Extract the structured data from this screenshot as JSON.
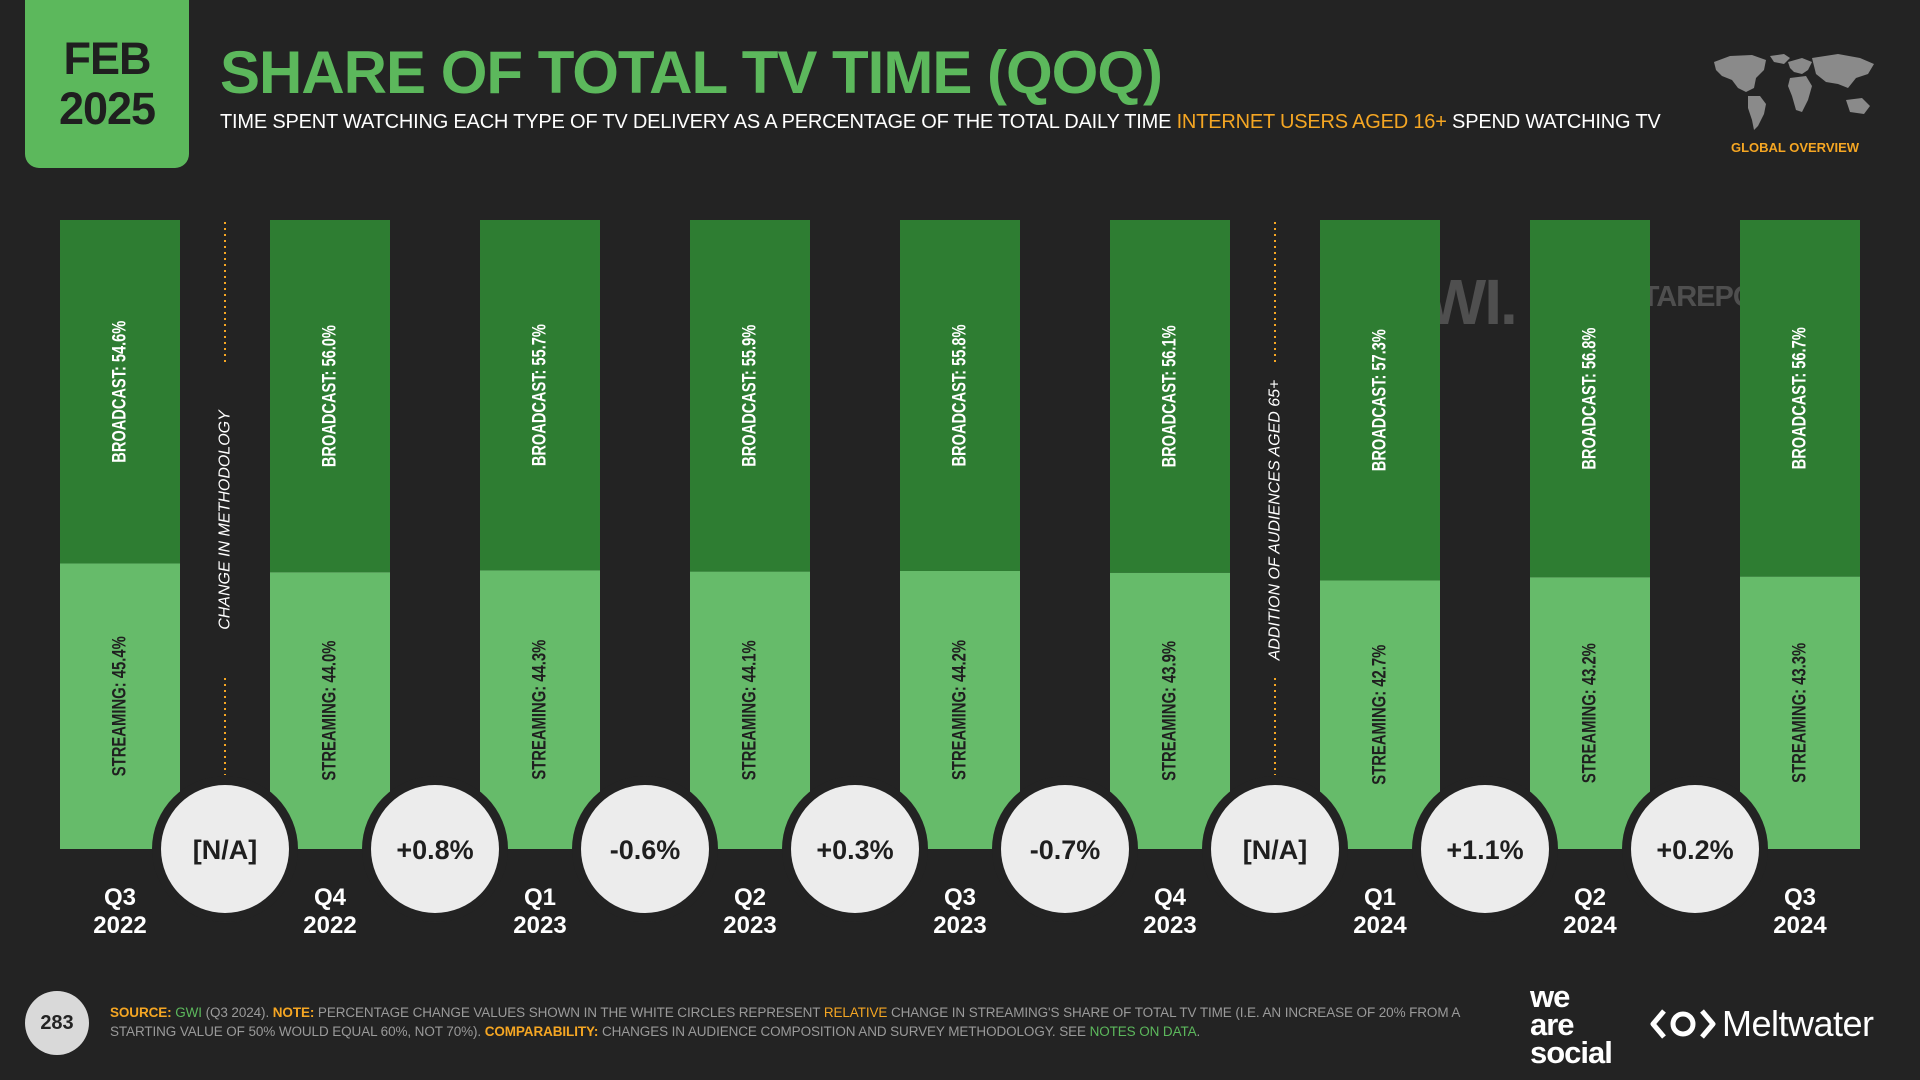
{
  "header": {
    "date_month": "FEB",
    "date_year": "2025",
    "title": "SHARE OF TOTAL TV TIME (QOQ)",
    "subtitle_pre": "TIME SPENT WATCHING EACH TYPE OF TV DELIVERY AS A PERCENTAGE OF THE TOTAL DAILY TIME ",
    "subtitle_highlight": "INTERNET USERS AGED 16+",
    "subtitle_post": " SPEND WATCHING TV",
    "global_label": "GLOBAL OVERVIEW"
  },
  "watermarks": {
    "gwi": "GWI.",
    "datareportal": "DATAREPORTAL"
  },
  "colors": {
    "background": "#232323",
    "broadcast": "#2e7d32",
    "streaming": "#66bb6a",
    "accent_green": "#5cb85c",
    "accent_orange": "#f5a623",
    "circle": "#ececec"
  },
  "chart_data": {
    "type": "bar",
    "stacked": true,
    "orientation": "vertical",
    "ylim": [
      0,
      100
    ],
    "categories": [
      [
        "Q3",
        "2022"
      ],
      [
        "Q4",
        "2022"
      ],
      [
        "Q1",
        "2023"
      ],
      [
        "Q2",
        "2023"
      ],
      [
        "Q3",
        "2023"
      ],
      [
        "Q4",
        "2023"
      ],
      [
        "Q1",
        "2024"
      ],
      [
        "Q2",
        "2024"
      ],
      [
        "Q3",
        "2024"
      ]
    ],
    "series": [
      {
        "name": "STREAMING",
        "values": [
          45.4,
          44.0,
          44.3,
          44.1,
          44.2,
          43.9,
          42.7,
          43.2,
          43.3
        ],
        "labels": [
          "STREAMING: 45.4%",
          "STREAMING: 44.0%",
          "STREAMING: 44.3%",
          "STREAMING: 44.1%",
          "STREAMING: 44.2%",
          "STREAMING: 43.9%",
          "STREAMING: 42.7%",
          "STREAMING: 43.2%",
          "STREAMING: 43.3%"
        ]
      },
      {
        "name": "BROADCAST",
        "values": [
          54.6,
          56.0,
          55.7,
          55.9,
          55.8,
          56.1,
          57.3,
          56.8,
          56.7
        ],
        "labels": [
          "BROADCAST: 54.6%",
          "BROADCAST: 56.0%",
          "BROADCAST: 55.7%",
          "BROADCAST: 55.9%",
          "BROADCAST: 55.8%",
          "BROADCAST: 56.1%",
          "BROADCAST: 57.3%",
          "BROADCAST: 56.8%",
          "BROADCAST: 56.7%"
        ]
      }
    ],
    "changes": [
      "[N/A]",
      "+0.8%",
      "-0.6%",
      "+0.3%",
      "-0.7%",
      "[N/A]",
      "+1.1%",
      "+0.2%"
    ],
    "annotations": [
      {
        "between": [
          0,
          1
        ],
        "text": "CHANGE IN METHODOLOGY"
      },
      {
        "between": [
          5,
          6
        ],
        "text": "ADDITION OF AUDIENCES AGED 65+"
      }
    ]
  },
  "footer": {
    "page_number": "283",
    "source_label": "SOURCE:",
    "source_name": "GWI",
    "source_rest": " (Q3 2024). ",
    "note_label": "NOTE:",
    "note_pre": " PERCENTAGE CHANGE VALUES SHOWN IN THE WHITE CIRCLES REPRESENT ",
    "note_highlight": "RELATIVE",
    "note_post": " CHANGE IN STREAMING'S SHARE OF TOTAL TV TIME (I.E. AN INCREASE OF 20% FROM A STARTING VALUE OF 50% WOULD EQUAL 60%, NOT 70%). ",
    "comp_label": "COMPARABILITY:",
    "comp_text": " CHANGES IN AUDIENCE COMPOSITION AND SURVEY METHODOLOGY. SEE ",
    "comp_link": "NOTES ON DATA",
    "comp_end": ".",
    "brand_1": [
      "we",
      "are",
      "social"
    ],
    "brand_2": "Meltwater"
  }
}
